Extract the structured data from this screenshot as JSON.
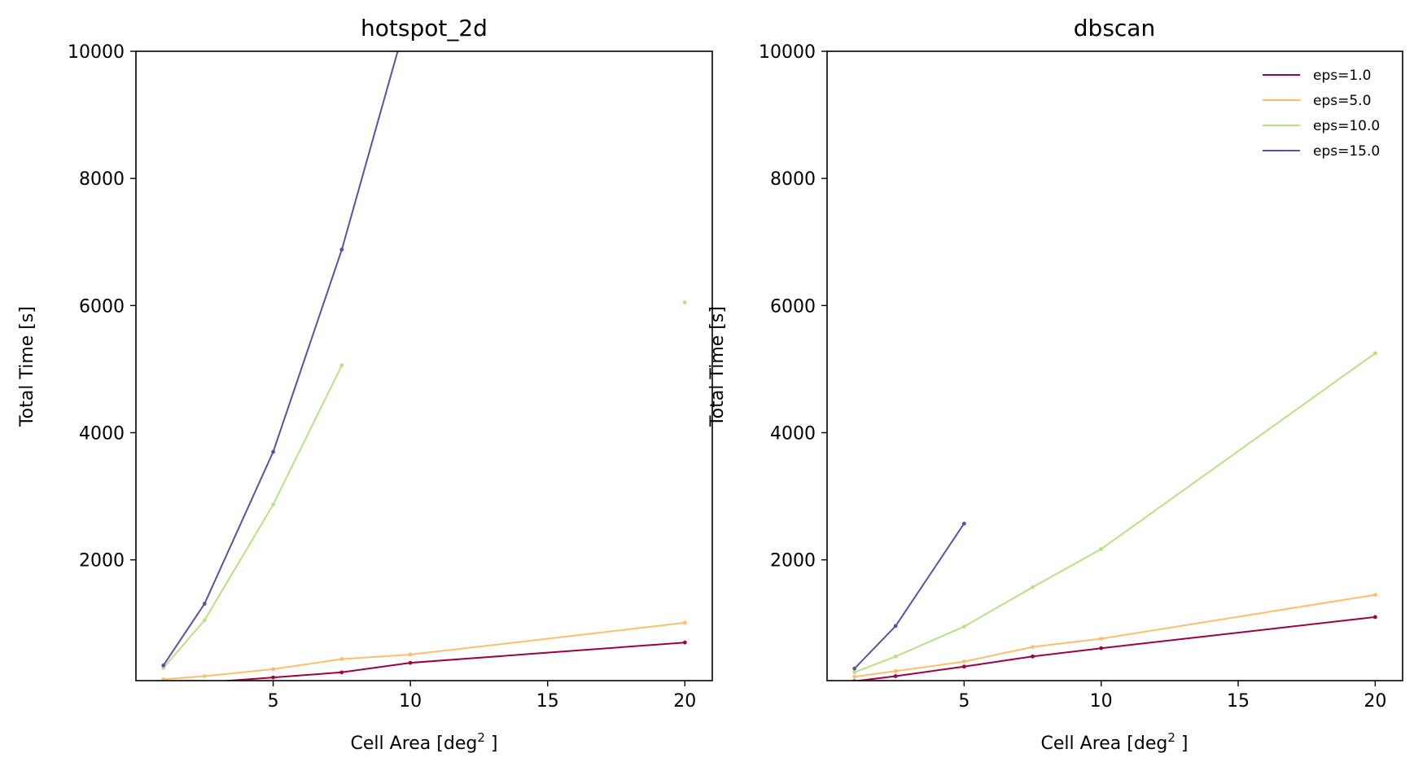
{
  "chart_data": [
    {
      "type": "line",
      "title": "hotspot_2d",
      "xlabel": "Cell Area [deg",
      "xlabel_sup": "2",
      "xlabel_end": " ]",
      "ylabel": "Total Time [s]",
      "xlim": [
        0.0,
        21.0
      ],
      "ylim": [
        100,
        10000
      ],
      "xticks": [
        5,
        10,
        15,
        20
      ],
      "yticks": [
        2000,
        4000,
        6000,
        8000,
        10000
      ],
      "grid": false,
      "series": [
        {
          "name": "eps=1.0",
          "color": "#9e0142",
          "x": [
            1,
            2.5,
            5,
            7.5,
            10,
            20
          ],
          "y": [
            40,
            70,
            150,
            230,
            380,
            700
          ]
        },
        {
          "name": "eps=5.0",
          "color": "#fdbf6f",
          "x": [
            1,
            2.5,
            5,
            7.5,
            10,
            20
          ],
          "y": [
            120,
            170,
            280,
            440,
            510,
            1010
          ]
        },
        {
          "name": "eps=10.0",
          "color": "#b8e186",
          "x": [
            1,
            2.5,
            5,
            7.5
          ],
          "y": [
            300,
            1050,
            2870,
            5060
          ],
          "extra_points": [
            {
              "x": 20,
              "y": 6050
            }
          ]
        },
        {
          "name": "eps=15.0",
          "color": "#5e4fa2",
          "x": [
            1,
            2.5,
            5,
            7.5,
            9.6
          ],
          "y": [
            340,
            1310,
            3700,
            6880,
            10100
          ]
        }
      ]
    },
    {
      "type": "line",
      "title": "dbscan",
      "xlabel": "Cell Area [deg",
      "xlabel_sup": "2",
      "xlabel_end": " ]",
      "ylabel": "Total Time [s]",
      "xlim": [
        0.0,
        21.0
      ],
      "ylim": [
        100,
        10000
      ],
      "xticks": [
        5,
        10,
        15,
        20
      ],
      "yticks": [
        2000,
        4000,
        6000,
        8000,
        10000
      ],
      "grid": false,
      "legend_position": "top-right",
      "series": [
        {
          "name": "eps=1.0",
          "color": "#9e0142",
          "x": [
            1,
            2.5,
            5,
            7.5,
            10,
            20
          ],
          "y": [
            90,
            170,
            320,
            480,
            610,
            1100
          ]
        },
        {
          "name": "eps=5.0",
          "color": "#fdbf6f",
          "x": [
            1,
            2.5,
            5,
            7.5,
            10,
            20
          ],
          "y": [
            160,
            250,
            400,
            630,
            760,
            1450
          ]
        },
        {
          "name": "eps=10.0",
          "color": "#b8e186",
          "x": [
            1,
            2.5,
            5,
            7.5,
            10,
            20
          ],
          "y": [
            230,
            480,
            950,
            1570,
            2170,
            5250
          ]
        },
        {
          "name": "eps=15.0",
          "color": "#5e4fa2",
          "x": [
            1,
            2.5,
            5
          ],
          "y": [
            290,
            960,
            2570
          ]
        }
      ]
    }
  ]
}
